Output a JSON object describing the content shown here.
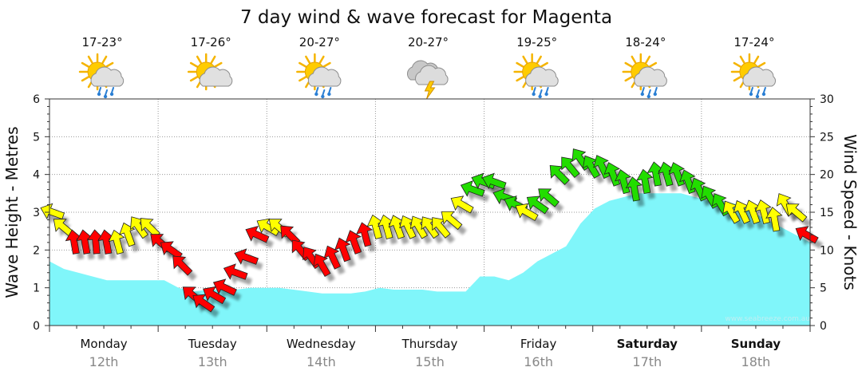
{
  "chart_data": {
    "type": "area",
    "title": "7 day wind & wave forecast for Magenta",
    "y_left_label": "Wave Height - Metres",
    "y_right_label": "Wind Speed - Knots",
    "y_left_range": [
      0,
      6
    ],
    "y_left_ticks": [
      "0",
      "1",
      "2",
      "3",
      "4",
      "5",
      "6"
    ],
    "y_right_range": [
      0,
      30
    ],
    "y_right_ticks": [
      "0",
      "5",
      "10",
      "15",
      "20",
      "25",
      "30"
    ],
    "grid": true,
    "credit": "www.seabreeze.com.au",
    "colors": {
      "wave_fill": "#80f6fa",
      "wind_light": "#ffff00",
      "wind_moderate": "#ff0000",
      "wind_fresh": "#22dd00"
    },
    "days": [
      {
        "day": "Monday",
        "date": "12th",
        "temp": "17-23°",
        "icon": "partly-cloudy-rain-icon",
        "weekend": false
      },
      {
        "day": "Tuesday",
        "date": "13th",
        "temp": "17-26°",
        "icon": "partly-cloudy-icon",
        "weekend": false
      },
      {
        "day": "Wednesday",
        "date": "14th",
        "temp": "20-27°",
        "icon": "partly-cloudy-rain-icon",
        "weekend": false
      },
      {
        "day": "Thursday",
        "date": "15th",
        "temp": "20-27°",
        "icon": "thunderstorm-icon",
        "weekend": false
      },
      {
        "day": "Friday",
        "date": "16th",
        "temp": "19-25°",
        "icon": "partly-cloudy-rain-icon",
        "weekend": false
      },
      {
        "day": "Saturday",
        "date": "17th",
        "temp": "18-24°",
        "icon": "partly-cloudy-rain-icon",
        "weekend": true
      },
      {
        "day": "Sunday",
        "date": "18th",
        "temp": "17-24°",
        "icon": "partly-cloudy-rain-icon",
        "weekend": true
      }
    ],
    "wave_height_m": [
      1.7,
      1.5,
      1.4,
      1.3,
      1.2,
      1.2,
      1.2,
      1.2,
      1.2,
      1.0,
      0.9,
      0.95,
      0.95,
      0.95,
      1.0,
      1.0,
      1.0,
      0.95,
      0.9,
      0.85,
      0.85,
      0.85,
      0.9,
      1.0,
      0.95,
      0.95,
      0.95,
      0.9,
      0.9,
      0.9,
      1.3,
      1.3,
      1.2,
      1.4,
      1.7,
      1.9,
      2.1,
      2.7,
      3.1,
      3.3,
      3.4,
      3.5,
      3.5,
      3.5,
      3.5,
      3.4,
      3.3,
      3.3,
      3.2,
      3.0,
      2.8,
      2.6,
      2.4,
      2.2
    ],
    "wind_knots": [
      15,
      13,
      11,
      11,
      11,
      11,
      11,
      12,
      13,
      13,
      11,
      10,
      8,
      4,
      3,
      4,
      5,
      7,
      9,
      12,
      13,
      13,
      12,
      10,
      9,
      8,
      9,
      10,
      11,
      12,
      13,
      13,
      13,
      13,
      13,
      13,
      13,
      14,
      16,
      18,
      19,
      19,
      17,
      16,
      15,
      16,
      17,
      20,
      21,
      22,
      21,
      21,
      20,
      19,
      18,
      19,
      20,
      20,
      20,
      19,
      18,
      17,
      16,
      15,
      15,
      15,
      15,
      14,
      16,
      15,
      12
    ],
    "wind_direction_deg": [
      200,
      220,
      260,
      260,
      265,
      260,
      255,
      250,
      235,
      225,
      220,
      215,
      225,
      220,
      215,
      210,
      205,
      200,
      200,
      205,
      210,
      220,
      225,
      230,
      235,
      240,
      245,
      250,
      250,
      255,
      255,
      255,
      250,
      245,
      240,
      235,
      230,
      220,
      210,
      200,
      200,
      200,
      200,
      205,
      210,
      215,
      220,
      225,
      230,
      235,
      240,
      245,
      250,
      255,
      260,
      260,
      260,
      255,
      250,
      250,
      245,
      240,
      240,
      240,
      245,
      250,
      255,
      260,
      240,
      220,
      210
    ]
  }
}
